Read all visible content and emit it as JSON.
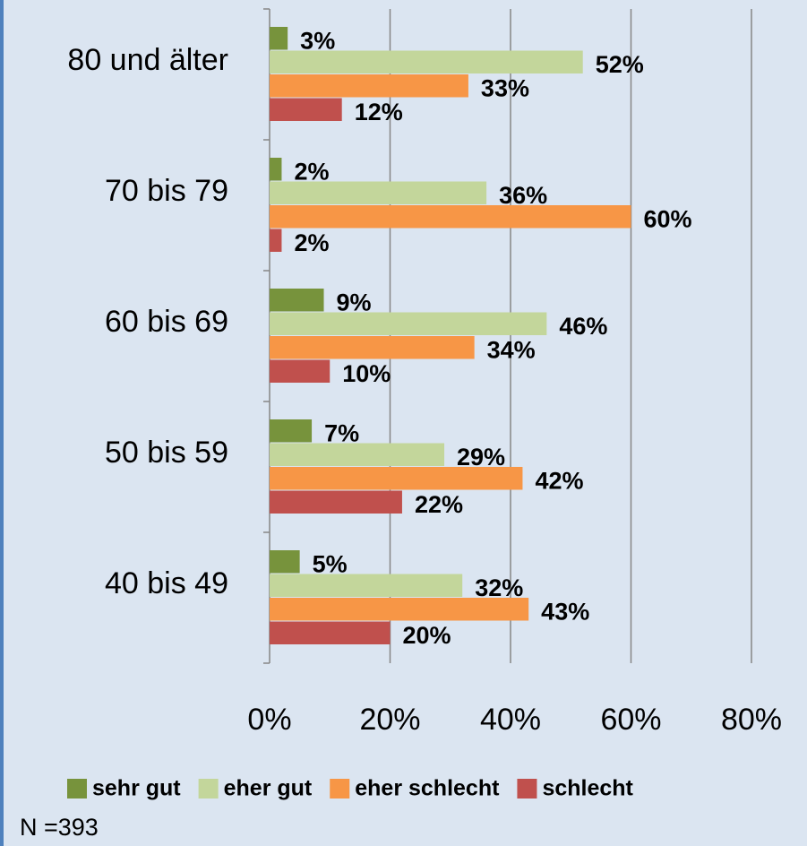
{
  "chart_data": {
    "type": "hbar",
    "categories": [
      "80 und älter",
      "70 bis 79",
      "60 bis 69",
      "50 bis 59",
      "40 bis 49"
    ],
    "series": [
      {
        "name": "sehr gut",
        "color": "#77933c",
        "values": [
          3,
          2,
          9,
          7,
          5
        ],
        "value_labels": [
          "3%",
          "2%",
          "9%",
          "7%",
          "5%"
        ]
      },
      {
        "name": "eher gut",
        "color": "#c3d69b",
        "values": [
          52,
          36,
          46,
          29,
          32
        ],
        "value_labels": [
          "52%",
          "36%",
          "46%",
          "29%",
          "32%"
        ]
      },
      {
        "name": "eher schlecht",
        "color": "#f79646",
        "values": [
          33,
          60,
          34,
          42,
          43
        ],
        "value_labels": [
          "33%",
          "60%",
          "34%",
          "42%",
          "43%"
        ]
      },
      {
        "name": "schlecht",
        "color": "#c0504d",
        "values": [
          12,
          2,
          10,
          22,
          20
        ],
        "value_labels": [
          "12%",
          "2%",
          "10%",
          "22%",
          "20%"
        ]
      }
    ],
    "xlim": [
      0,
      80
    ],
    "xticks": [
      {
        "value": 0,
        "label": "0%"
      },
      {
        "value": 20,
        "label": "20%"
      },
      {
        "value": 40,
        "label": "40%"
      },
      {
        "value": 60,
        "label": "60%"
      },
      {
        "value": 80,
        "label": "80%"
      }
    ],
    "grid": true,
    "legend": "bottom",
    "note": "N =393"
  }
}
